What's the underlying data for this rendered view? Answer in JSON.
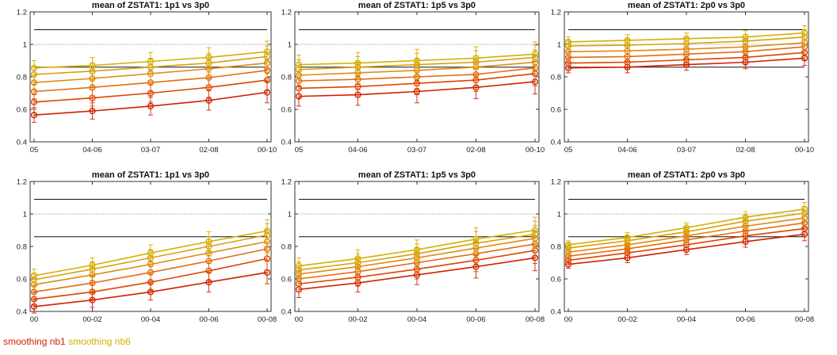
{
  "legend": {
    "first": "smoothing nb1",
    "last": "smoothing nb6",
    "first_color": "#cc2200",
    "last_color": "#d4b000"
  },
  "series_colors": [
    "#d02000",
    "#dd4400",
    "#e46c10",
    "#e08a10",
    "#d8a010",
    "#d4b000"
  ],
  "chart_data": [
    {
      "type": "line",
      "title": "mean of ZSTAT1: 1p1 vs 3p0",
      "categories": [
        "05",
        "04-06",
        "03-07",
        "02-08",
        "00-10"
      ],
      "ylim": [
        0.4,
        1.2
      ],
      "yticks": [
        0.4,
        0.6,
        0.8,
        1,
        1.2
      ],
      "ref_solid": [
        1.09,
        0.86
      ],
      "ref_dotted": 1.0,
      "series": [
        {
          "values": [
            0.565,
            0.59,
            0.62,
            0.655,
            0.705
          ]
        },
        {
          "values": [
            0.645,
            0.67,
            0.7,
            0.735,
            0.78
          ]
        },
        {
          "values": [
            0.71,
            0.735,
            0.765,
            0.795,
            0.84
          ]
        },
        {
          "values": [
            0.765,
            0.79,
            0.82,
            0.85,
            0.885
          ]
        },
        {
          "values": [
            0.815,
            0.835,
            0.86,
            0.885,
            0.925
          ]
        },
        {
          "values": [
            0.855,
            0.87,
            0.895,
            0.92,
            0.955
          ]
        }
      ],
      "err": [
        0.045,
        0.05,
        0.055,
        0.06,
        0.065
      ]
    },
    {
      "type": "line",
      "title": "mean of ZSTAT1: 1p5 vs 3p0",
      "categories": [
        "05",
        "04-06",
        "03-07",
        "02-08",
        "00-10"
      ],
      "ylim": [
        0.4,
        1.2
      ],
      "yticks": [
        0.4,
        0.6,
        0.8,
        1,
        1.2
      ],
      "ref_solid": [
        1.09,
        0.86
      ],
      "ref_dotted": 1.0,
      "series": [
        {
          "values": [
            0.68,
            0.69,
            0.71,
            0.735,
            0.77
          ]
        },
        {
          "values": [
            0.73,
            0.74,
            0.76,
            0.78,
            0.82
          ]
        },
        {
          "values": [
            0.775,
            0.785,
            0.8,
            0.815,
            0.855
          ]
        },
        {
          "values": [
            0.81,
            0.825,
            0.84,
            0.86,
            0.89
          ]
        },
        {
          "values": [
            0.845,
            0.86,
            0.875,
            0.89,
            0.92
          ]
        },
        {
          "values": [
            0.875,
            0.885,
            0.9,
            0.915,
            0.94
          ]
        }
      ],
      "err": [
        0.06,
        0.065,
        0.07,
        0.07,
        0.075
      ]
    },
    {
      "type": "line",
      "title": "mean of ZSTAT1: 2p0 vs 3p0",
      "categories": [
        "05",
        "04-06",
        "03-07",
        "02-08",
        "00-10"
      ],
      "ylim": [
        0.4,
        1.2
      ],
      "yticks": [
        0.4,
        0.6,
        0.8,
        1,
        1.2
      ],
      "ref_solid": [
        1.09,
        0.86
      ],
      "ref_dotted": 1.0,
      "series": [
        {
          "values": [
            0.855,
            0.86,
            0.875,
            0.89,
            0.915
          ]
        },
        {
          "values": [
            0.885,
            0.89,
            0.905,
            0.92,
            0.95
          ]
        },
        {
          "values": [
            0.92,
            0.925,
            0.94,
            0.955,
            0.985
          ]
        },
        {
          "values": [
            0.955,
            0.96,
            0.97,
            0.985,
            1.01
          ]
        },
        {
          "values": [
            0.99,
            0.995,
            1.005,
            1.02,
            1.045
          ]
        },
        {
          "values": [
            1.015,
            1.025,
            1.035,
            1.045,
            1.07
          ]
        }
      ],
      "err": [
        0.03,
        0.035,
        0.035,
        0.04,
        0.045
      ]
    },
    {
      "type": "line",
      "title": "mean of ZSTAT1: 1p1 vs 3p0",
      "categories": [
        "00",
        "00-02",
        "00-04",
        "00-06",
        "00-08"
      ],
      "ylim": [
        0.4,
        1.2
      ],
      "yticks": [
        0.4,
        0.6,
        0.8,
        1,
        1.2
      ],
      "ref_solid": [
        1.09,
        0.86
      ],
      "ref_dotted": 1.0,
      "series": [
        {
          "values": [
            0.43,
            0.47,
            0.52,
            0.58,
            0.64
          ]
        },
        {
          "values": [
            0.475,
            0.52,
            0.58,
            0.65,
            0.725
          ]
        },
        {
          "values": [
            0.52,
            0.575,
            0.64,
            0.71,
            0.785
          ]
        },
        {
          "values": [
            0.565,
            0.625,
            0.69,
            0.76,
            0.83
          ]
        },
        {
          "values": [
            0.595,
            0.66,
            0.73,
            0.8,
            0.87
          ]
        },
        {
          "values": [
            0.62,
            0.685,
            0.76,
            0.83,
            0.895
          ]
        }
      ],
      "err": [
        0.04,
        0.045,
        0.05,
        0.06,
        0.07
      ]
    },
    {
      "type": "line",
      "title": "mean of ZSTAT1: 1p5 vs 3p0",
      "categories": [
        "00",
        "00-02",
        "00-04",
        "00-06",
        "00-08"
      ],
      "ylim": [
        0.4,
        1.2
      ],
      "yticks": [
        0.4,
        0.6,
        0.8,
        1,
        1.2
      ],
      "ref_solid": [
        1.09,
        0.86
      ],
      "ref_dotted": 1.0,
      "series": [
        {
          "values": [
            0.535,
            0.575,
            0.625,
            0.675,
            0.73
          ]
        },
        {
          "values": [
            0.57,
            0.61,
            0.66,
            0.715,
            0.775
          ]
        },
        {
          "values": [
            0.6,
            0.645,
            0.7,
            0.755,
            0.815
          ]
        },
        {
          "values": [
            0.63,
            0.675,
            0.73,
            0.79,
            0.85
          ]
        },
        {
          "values": [
            0.655,
            0.7,
            0.755,
            0.82,
            0.875
          ]
        },
        {
          "values": [
            0.68,
            0.725,
            0.78,
            0.845,
            0.9
          ]
        }
      ],
      "err": [
        0.05,
        0.055,
        0.06,
        0.07,
        0.08
      ]
    },
    {
      "type": "line",
      "title": "mean of ZSTAT1: 2p0 vs 3p0",
      "categories": [
        "00",
        "00-02",
        "00-04",
        "00-06",
        "00-08"
      ],
      "ylim": [
        0.4,
        1.2
      ],
      "yticks": [
        0.4,
        0.6,
        0.8,
        1,
        1.2
      ],
      "ref_solid": [
        1.09,
        0.86
      ],
      "ref_dotted": 1.0,
      "series": [
        {
          "values": [
            0.69,
            0.73,
            0.78,
            0.83,
            0.875
          ]
        },
        {
          "values": [
            0.715,
            0.76,
            0.81,
            0.865,
            0.91
          ]
        },
        {
          "values": [
            0.74,
            0.785,
            0.84,
            0.895,
            0.945
          ]
        },
        {
          "values": [
            0.765,
            0.81,
            0.865,
            0.925,
            0.975
          ]
        },
        {
          "values": [
            0.79,
            0.835,
            0.89,
            0.955,
            1.005
          ]
        },
        {
          "values": [
            0.81,
            0.855,
            0.915,
            0.98,
            1.03
          ]
        }
      ],
      "err": [
        0.025,
        0.03,
        0.03,
        0.035,
        0.04
      ]
    }
  ]
}
